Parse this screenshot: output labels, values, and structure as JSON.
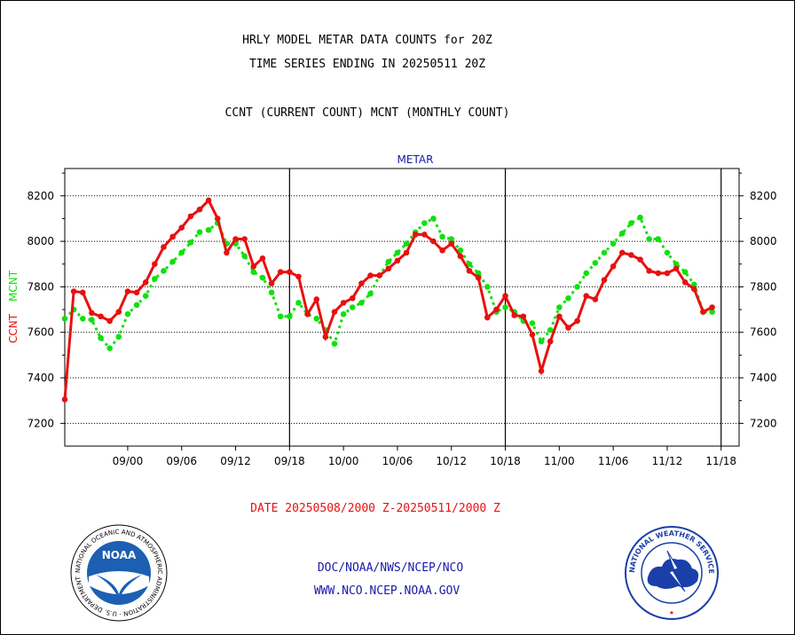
{
  "header": {
    "title_line1": "HRLY MODEL METAR DATA COUNTS for 20Z",
    "title_line2": "TIME SERIES ENDING IN 20250511 20Z",
    "legend_line": "CCNT (CURRENT COUNT) MCNT (MONTHLY COUNT)"
  },
  "footer": {
    "date_range": "DATE 20250508/2000 Z-20250511/2000 Z",
    "agency": "DOC/NOAA/NWS/NCEP/NCO",
    "website": "WWW.NCO.NCEP.NOAA.GOV"
  },
  "logos": {
    "noaa_text": "NOAA",
    "noaa_ring_text": "NATIONAL OCEANIC AND ATMOSPHERIC ADMINISTRATION · U.S. DEPARTMENT OF COMMERCE",
    "nws_ring_text": "NATIONAL WEATHER SERVICE"
  },
  "colors": {
    "ccnt": "#e81010",
    "mcnt": "#10e010",
    "panel_title": "#1a1aa8",
    "footer_red": "#e81010",
    "footer_blue": "#1a1aa8"
  },
  "chart_data": {
    "type": "line",
    "panel_title": "METAR",
    "ylabel_ccnt": "CCNT",
    "ylabel_mcnt": "MCNT",
    "ylim": [
      7100,
      8320
    ],
    "yticks": [
      7200,
      7400,
      7600,
      7800,
      8000,
      8200
    ],
    "grid": true,
    "x_hour_start": -3,
    "x_hour_end": 72,
    "xtick_labels": [
      "09/00",
      "09/06",
      "09/12",
      "09/18",
      "10/00",
      "10/06",
      "10/12",
      "10/18",
      "11/00",
      "11/06",
      "11/12",
      "11/18"
    ],
    "xtick_hours": [
      4,
      10,
      16,
      22,
      28,
      34,
      40,
      46,
      52,
      58,
      64,
      70
    ],
    "day_boundary_hours": [
      22,
      46,
      70
    ],
    "series": [
      {
        "name": "CCNT",
        "values": [
          7305,
          7780,
          7775,
          7685,
          7670,
          7650,
          7690,
          7780,
          7775,
          7820,
          7900,
          7975,
          8020,
          8060,
          8110,
          8140,
          8180,
          8100,
          7950,
          8010,
          8010,
          7890,
          7925,
          7815,
          7865,
          7865,
          7845,
          7680,
          7745,
          7580,
          7690,
          7730,
          7750,
          7815,
          7850,
          7850,
          7880,
          7915,
          7950,
          8030,
          8030,
          8000,
          7960,
          7990,
          7935,
          7870,
          7840,
          7665,
          7700,
          7760,
          7675,
          7670,
          7590,
          7430,
          7560,
          7670,
          7620,
          7650,
          7760,
          7745,
          7830,
          7890,
          7950,
          7940,
          7920,
          7870,
          7860,
          7860,
          7880,
          7820,
          7790,
          7690,
          7710
        ]
      },
      {
        "name": "MCNT",
        "values": [
          7660,
          7700,
          7660,
          7655,
          7575,
          7530,
          7580,
          7680,
          7720,
          7760,
          7835,
          7870,
          7910,
          7950,
          7995,
          8040,
          8050,
          8080,
          7990,
          7990,
          7935,
          7865,
          7840,
          7775,
          7670,
          7670,
          7730,
          7680,
          7660,
          7610,
          7550,
          7680,
          7710,
          7730,
          7770,
          7850,
          7910,
          7950,
          7990,
          8040,
          8080,
          8100,
          8020,
          8010,
          7960,
          7900,
          7860,
          7800,
          7690,
          7710,
          7690,
          7650,
          7640,
          7560,
          7610,
          7710,
          7750,
          7800,
          7860,
          7905,
          7950,
          7990,
          8035,
          8080,
          8105,
          8010,
          8010,
          7950,
          7900,
          7865,
          7810,
          7690,
          7690
        ]
      }
    ]
  }
}
